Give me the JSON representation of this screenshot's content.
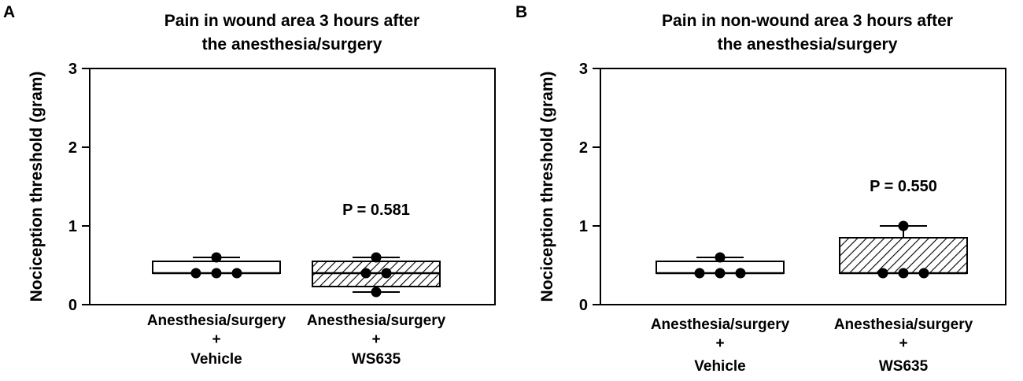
{
  "chart_data": [
    {
      "type": "box",
      "panel_label": "A",
      "title": [
        "Pain in wound area 3 hours after",
        "the anesthesia/surgery"
      ],
      "ylabel": "Nociception threshold (gram)",
      "ylim": [
        0,
        3
      ],
      "yticks": [
        "0",
        "1",
        "2",
        "3"
      ],
      "categories": [
        {
          "lines": [
            "Anesthesia/surgery",
            "+",
            "Vehicle"
          ]
        },
        {
          "lines": [
            "Anesthesia/surgery",
            "+",
            "WS635"
          ]
        }
      ],
      "boxes": [
        {
          "min": 0.4,
          "q1": 0.4,
          "median": 0.4,
          "q3": 0.55,
          "max": 0.6,
          "points": [
            0.4,
            0.4,
            0.4,
            0.6
          ],
          "pattern": "none"
        },
        {
          "min": 0.16,
          "q1": 0.23,
          "median": 0.4,
          "q3": 0.55,
          "max": 0.6,
          "points": [
            0.16,
            0.4,
            0.4,
            0.6
          ],
          "pattern": "hatch"
        }
      ],
      "annotation": {
        "text": "P = 0.581",
        "category": 1,
        "y": 1.17
      }
    },
    {
      "type": "box",
      "panel_label": "B",
      "title": [
        "Pain in non-wound area 3 hours after",
        "the anesthesia/surgery"
      ],
      "ylabel": "Nociception threshold (gram)",
      "ylim": [
        0,
        3
      ],
      "yticks": [
        "0",
        "1",
        "2",
        "3"
      ],
      "categories": [
        {
          "lines": [
            "Anesthesia/surgery",
            "+",
            "Vehicle"
          ]
        },
        {
          "lines": [
            "Anesthesia/surgery",
            "+",
            "WS635"
          ]
        }
      ],
      "boxes": [
        {
          "min": 0.4,
          "q1": 0.4,
          "median": 0.4,
          "q3": 0.55,
          "max": 0.6,
          "points": [
            0.4,
            0.4,
            0.4,
            0.6
          ],
          "pattern": "none"
        },
        {
          "min": 0.4,
          "q1": 0.4,
          "median": 0.4,
          "q3": 0.85,
          "max": 1.0,
          "points": [
            0.4,
            0.4,
            0.4,
            1.0
          ],
          "pattern": "hatch"
        }
      ],
      "annotation": {
        "text": "P = 0.550",
        "category": 1,
        "y": 1.48
      }
    }
  ]
}
